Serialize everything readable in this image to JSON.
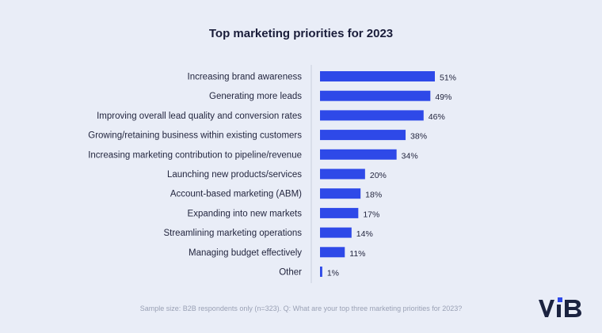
{
  "chart_data": {
    "type": "bar",
    "orientation": "horizontal",
    "title": "Top marketing priorities for 2023",
    "categories": [
      "Increasing brand awareness",
      "Generating more leads",
      "Improving overall lead quality and conversion rates",
      "Growing/retaining business within existing customers",
      "Increasing marketing contribution to pipeline/revenue",
      "Launching new products/services",
      "Account-based marketing (ABM)",
      "Expanding into new markets",
      "Streamlining marketing operations",
      "Managing budget effectively",
      "Other"
    ],
    "values": [
      51,
      49,
      46,
      38,
      34,
      20,
      18,
      17,
      14,
      11,
      1
    ],
    "value_labels": [
      "51%",
      "49%",
      "46%",
      "38%",
      "34%",
      "20%",
      "18%",
      "17%",
      "14%",
      "11%",
      "1%"
    ],
    "unit": "%",
    "bar_color": "#2e49e8",
    "grid": false
  },
  "footnote": "Sample size: B2B respondents only (n=323). Q: What are your top three marketing priorities for 2023?",
  "logo_text": "ViB"
}
